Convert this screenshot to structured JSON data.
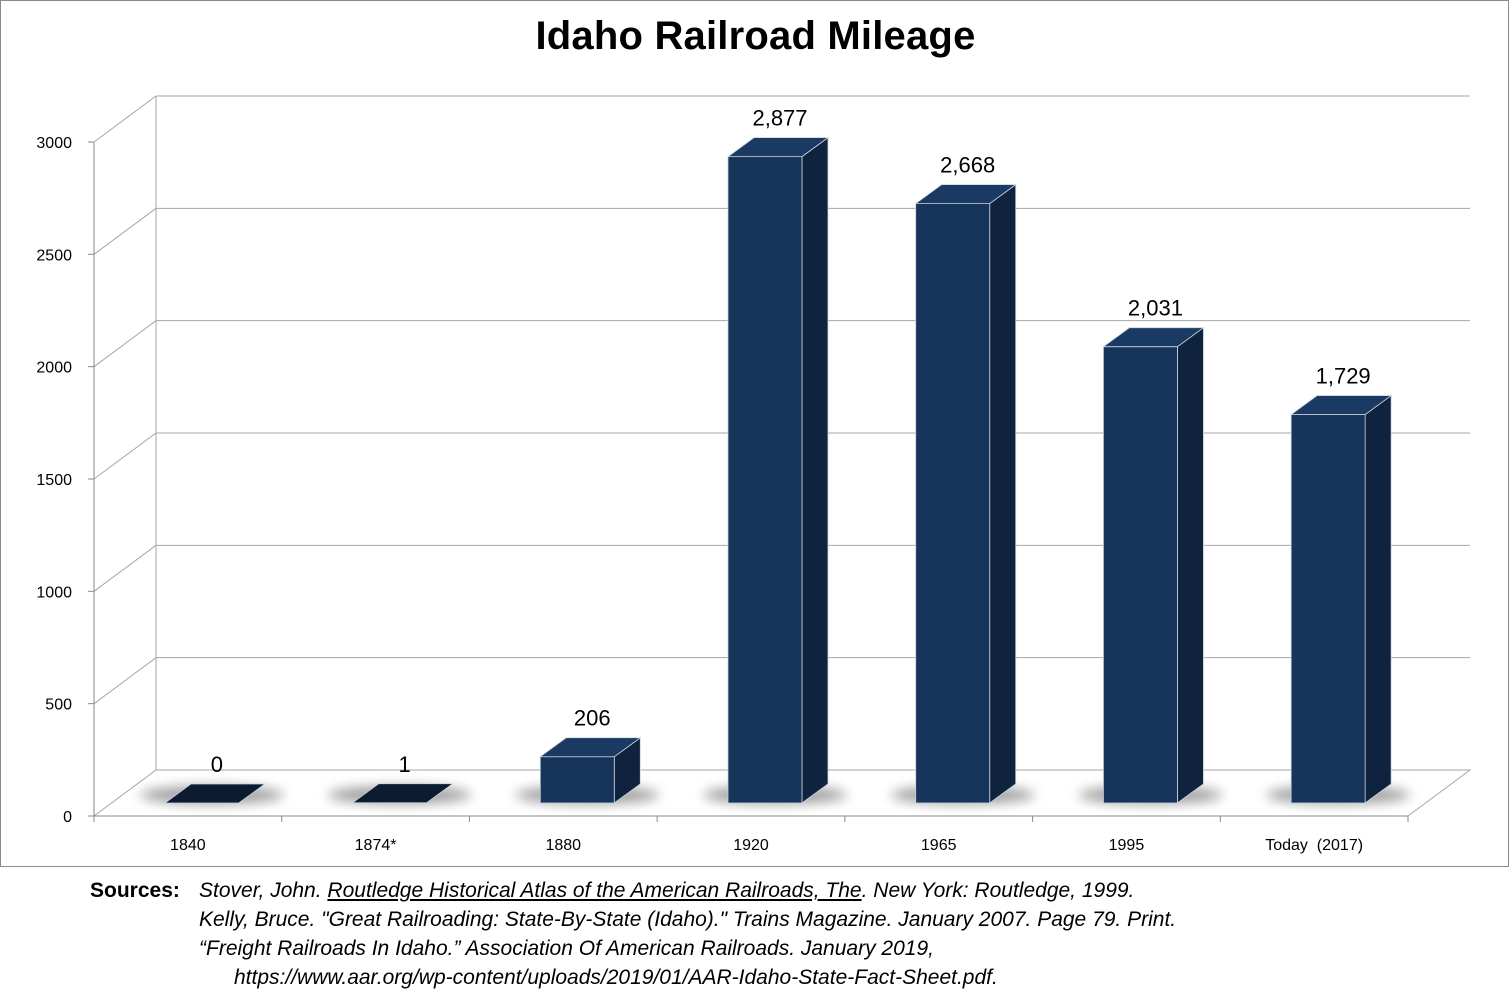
{
  "chart_data": {
    "type": "bar",
    "title": "Idaho Railroad Mileage",
    "categories": [
      "1840",
      "1874*",
      "1880",
      "1920",
      "1965",
      "1995",
      "Today  (2017)"
    ],
    "values": [
      0,
      1,
      206,
      2877,
      2668,
      2031,
      1729
    ],
    "data_labels": [
      "0",
      "1",
      "206",
      "2,877",
      "2,668",
      "2,031",
      "1,729"
    ],
    "y_ticks": [
      "0",
      "500",
      "1000",
      "1500",
      "2000",
      "2500",
      "3000"
    ],
    "ylim": [
      0,
      3000
    ],
    "xlabel": "",
    "ylabel": "",
    "grid": true,
    "legend": "none",
    "style": "3d-column",
    "bar_color": "#17345a",
    "bar_side_color": "#0f233f",
    "bar_top_color": "#1a3a64",
    "grid_color": "#a6a6a6"
  },
  "sources": {
    "label": "Sources:",
    "line1_author": "Stover, John. ",
    "line1_title": "Routledge Historical Atlas of the American Railroads, The",
    "line1_rest": ". New York: Routledge, 1999.",
    "line2": "Kelly, Bruce. \"Great Railroading: State-By-State (Idaho).\" Trains Magazine. January 2007. Page 79. Print.",
    "line3": "“Freight Railroads In Idaho.” Association Of American Railroads. January 2019,",
    "line4": "https://www.aar.org/wp-content/uploads/2019/01/AAR-Idaho-State-Fact-Sheet.pdf."
  }
}
